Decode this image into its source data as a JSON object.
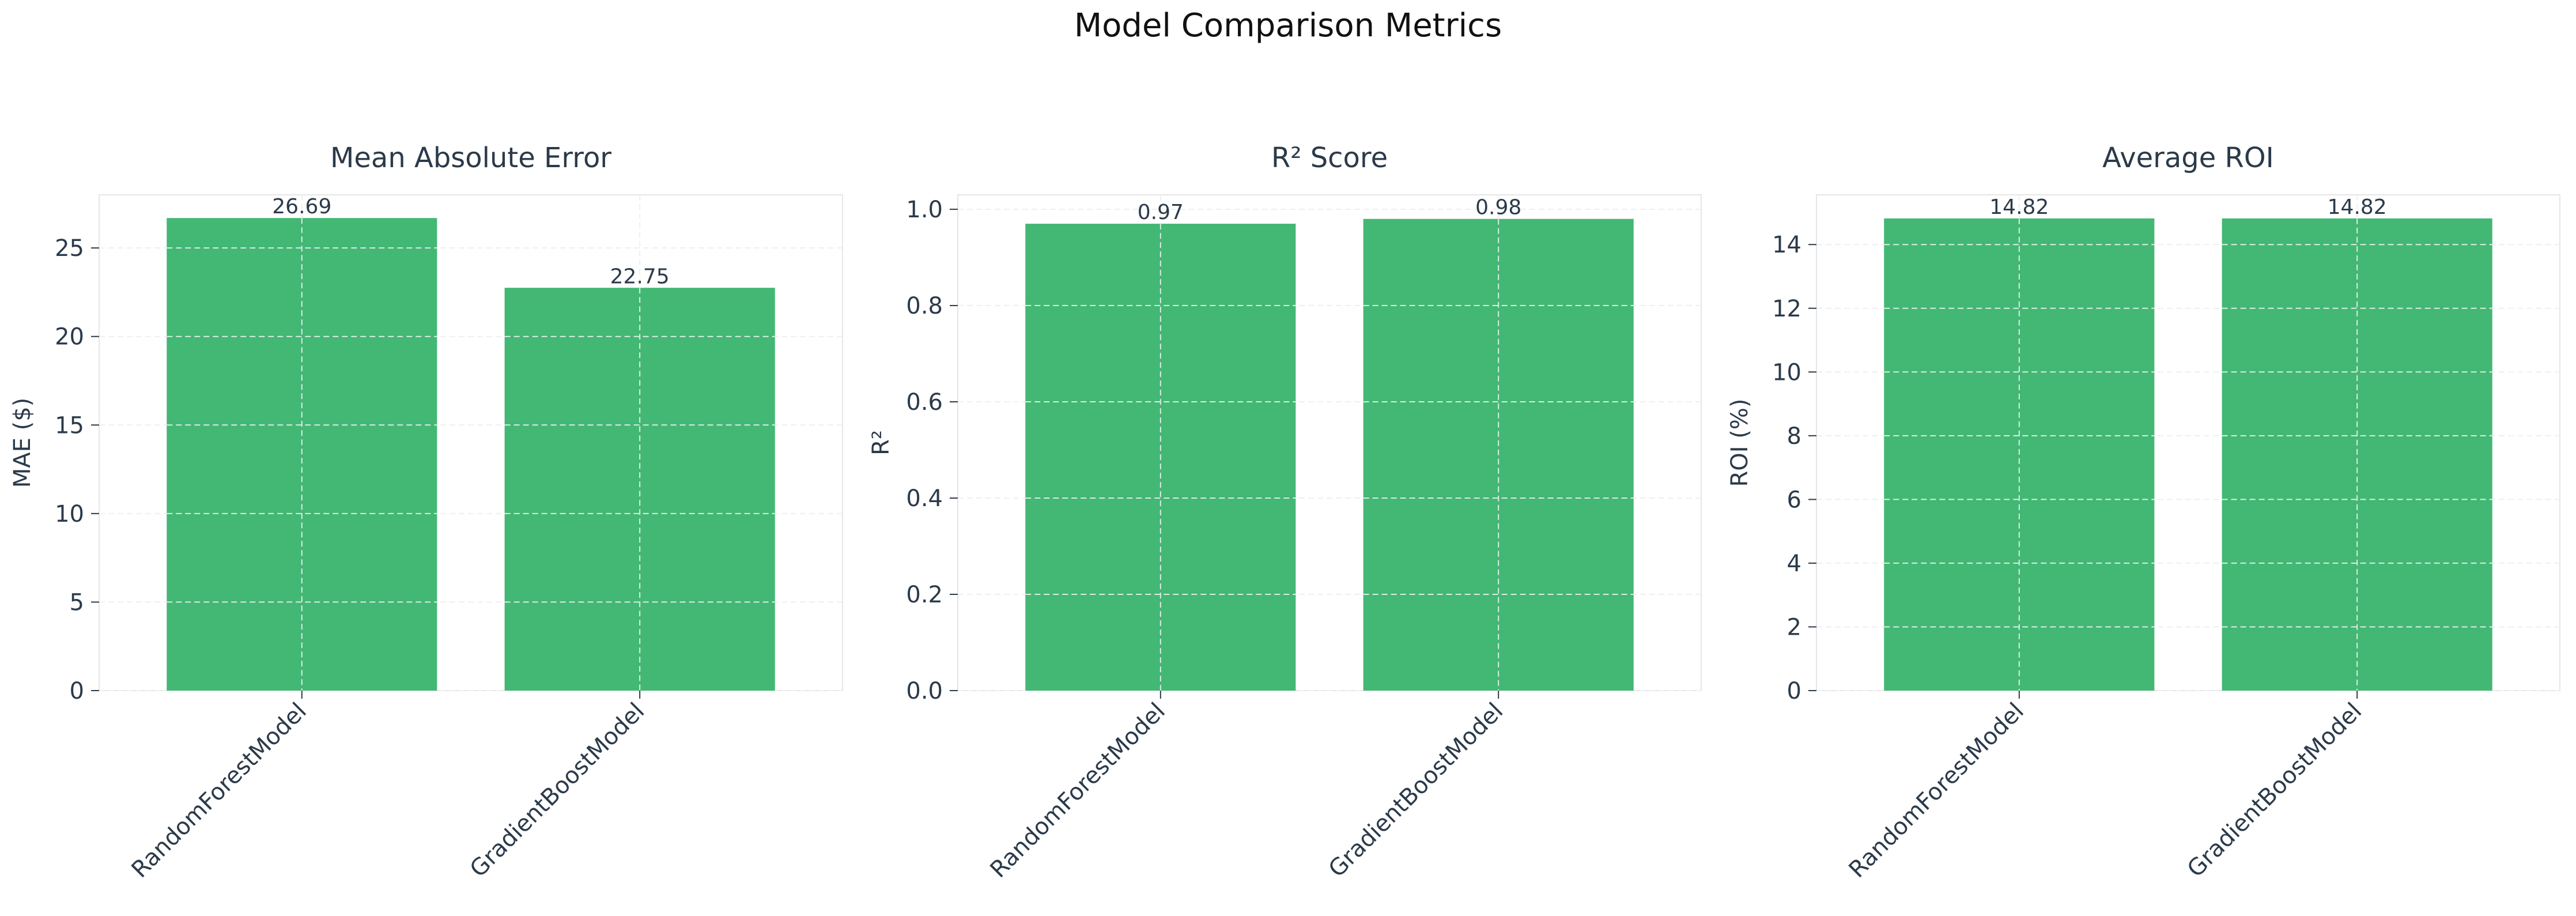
{
  "figure": {
    "title": "Model Comparison Metrics"
  },
  "colors": {
    "bar": "#43b774",
    "text": "#2b3a4a",
    "axis": "#e6e6e6",
    "grid_on_bar": "#d9eee2",
    "grid_bg": "#efefef"
  },
  "chart_data": [
    {
      "type": "bar",
      "title": "Mean Absolute Error",
      "xlabel": "",
      "ylabel": "MAE ($)",
      "categories": [
        "RandomForestModel",
        "GradientBoostModel"
      ],
      "values": [
        26.69,
        22.75
      ],
      "value_labels": [
        "26.69",
        "22.75"
      ],
      "ylim": [
        0,
        28.0
      ],
      "yticks": [
        0,
        5,
        10,
        15,
        20,
        25
      ],
      "ytick_labels": [
        "0",
        "5",
        "10",
        "15",
        "20",
        "25"
      ],
      "grid": true
    },
    {
      "type": "bar",
      "title": "R² Score",
      "xlabel": "",
      "ylabel": "R²",
      "categories": [
        "RandomForestModel",
        "GradientBoostModel"
      ],
      "values": [
        0.97,
        0.98
      ],
      "value_labels": [
        "0.97",
        "0.98"
      ],
      "ylim": [
        0,
        1.03
      ],
      "yticks": [
        0.0,
        0.2,
        0.4,
        0.6,
        0.8,
        1.0
      ],
      "ytick_labels": [
        "0.0",
        "0.2",
        "0.4",
        "0.6",
        "0.8",
        "1.0"
      ],
      "grid": true
    },
    {
      "type": "bar",
      "title": "Average ROI",
      "xlabel": "",
      "ylabel": "ROI (%)",
      "categories": [
        "RandomForestModel",
        "GradientBoostModel"
      ],
      "values": [
        14.82,
        14.82
      ],
      "value_labels": [
        "14.82",
        "14.82"
      ],
      "ylim": [
        0,
        15.56
      ],
      "yticks": [
        0,
        2,
        4,
        6,
        8,
        10,
        12,
        14
      ],
      "ytick_labels": [
        "0",
        "2",
        "4",
        "6",
        "8",
        "10",
        "12",
        "14"
      ],
      "grid": true
    }
  ]
}
